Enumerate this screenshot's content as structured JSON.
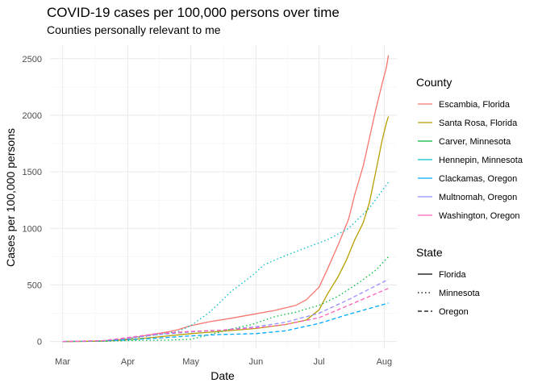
{
  "chart_data": {
    "type": "line",
    "title": "COVID-19 cases per 100,000 persons over time",
    "subtitle": "Counties personally relevant to me",
    "xlabel": "Date",
    "ylabel": "Cases per 100,000 persons",
    "xlim": [
      "2020-02-24",
      "2020-08-07"
    ],
    "ylim": [
      -60,
      2620
    ],
    "x_ticks": [
      {
        "date": "2020-03-01",
        "label": "Mar"
      },
      {
        "date": "2020-04-01",
        "label": "Apr"
      },
      {
        "date": "2020-05-01",
        "label": "May"
      },
      {
        "date": "2020-06-01",
        "label": "Jun"
      },
      {
        "date": "2020-07-01",
        "label": "Jul"
      },
      {
        "date": "2020-08-01",
        "label": "Aug"
      }
    ],
    "y_ticks": [
      0,
      500,
      1000,
      1500,
      2000,
      2500
    ],
    "grid": true,
    "legend_position": "right",
    "legend_color_title": "County",
    "legend_linetype_title": "State",
    "states": [
      {
        "name": "Florida",
        "dash": "solid"
      },
      {
        "name": "Minnesota",
        "dash": "dotted"
      },
      {
        "name": "Oregon",
        "dash": "dashed"
      }
    ],
    "series": [
      {
        "name": "Escambia, Florida",
        "state": "Florida",
        "color": "#F8766D",
        "points": [
          [
            "2020-03-01",
            0
          ],
          [
            "2020-03-15",
            2
          ],
          [
            "2020-03-25",
            10
          ],
          [
            "2020-04-01",
            25
          ],
          [
            "2020-04-10",
            55
          ],
          [
            "2020-04-20",
            85
          ],
          [
            "2020-04-25",
            105
          ],
          [
            "2020-05-01",
            140
          ],
          [
            "2020-05-10",
            175
          ],
          [
            "2020-05-20",
            205
          ],
          [
            "2020-06-01",
            245
          ],
          [
            "2020-06-10",
            275
          ],
          [
            "2020-06-20",
            320
          ],
          [
            "2020-06-25",
            370
          ],
          [
            "2020-07-01",
            480
          ],
          [
            "2020-07-05",
            640
          ],
          [
            "2020-07-10",
            850
          ],
          [
            "2020-07-15",
            1080
          ],
          [
            "2020-07-18",
            1300
          ],
          [
            "2020-07-22",
            1550
          ],
          [
            "2020-07-25",
            1800
          ],
          [
            "2020-07-28",
            2050
          ],
          [
            "2020-07-31",
            2280
          ],
          [
            "2020-08-02",
            2420
          ],
          [
            "2020-08-03",
            2530
          ]
        ]
      },
      {
        "name": "Santa Rosa, Florida",
        "state": "Florida",
        "color": "#B79F00",
        "points": [
          [
            "2020-03-01",
            0
          ],
          [
            "2020-03-20",
            3
          ],
          [
            "2020-04-01",
            15
          ],
          [
            "2020-04-15",
            40
          ],
          [
            "2020-05-01",
            70
          ],
          [
            "2020-05-15",
            90
          ],
          [
            "2020-06-01",
            115
          ],
          [
            "2020-06-15",
            150
          ],
          [
            "2020-06-25",
            190
          ],
          [
            "2020-07-01",
            280
          ],
          [
            "2020-07-05",
            420
          ],
          [
            "2020-07-10",
            570
          ],
          [
            "2020-07-14",
            720
          ],
          [
            "2020-07-18",
            900
          ],
          [
            "2020-07-22",
            1050
          ],
          [
            "2020-07-25",
            1230
          ],
          [
            "2020-07-28",
            1500
          ],
          [
            "2020-07-31",
            1780
          ],
          [
            "2020-08-02",
            1930
          ],
          [
            "2020-08-03",
            1990
          ]
        ]
      },
      {
        "name": "Carver, Minnesota",
        "state": "Minnesota",
        "color": "#00BA38",
        "points": [
          [
            "2020-03-01",
            0
          ],
          [
            "2020-03-20",
            2
          ],
          [
            "2020-04-01",
            8
          ],
          [
            "2020-04-20",
            12
          ],
          [
            "2020-05-01",
            20
          ],
          [
            "2020-05-10",
            60
          ],
          [
            "2020-05-20",
            110
          ],
          [
            "2020-05-30",
            150
          ],
          [
            "2020-06-10",
            220
          ],
          [
            "2020-06-20",
            260
          ],
          [
            "2020-07-01",
            320
          ],
          [
            "2020-07-10",
            400
          ],
          [
            "2020-07-20",
            520
          ],
          [
            "2020-07-28",
            630
          ],
          [
            "2020-08-03",
            750
          ]
        ]
      },
      {
        "name": "Hennepin, Minnesota",
        "state": "Minnesota",
        "color": "#00BFC4",
        "points": [
          [
            "2020-03-01",
            0
          ],
          [
            "2020-03-20",
            5
          ],
          [
            "2020-04-01",
            25
          ],
          [
            "2020-04-15",
            60
          ],
          [
            "2020-04-25",
            90
          ],
          [
            "2020-05-01",
            140
          ],
          [
            "2020-05-10",
            260
          ],
          [
            "2020-05-20",
            440
          ],
          [
            "2020-05-30",
            580
          ],
          [
            "2020-06-05",
            680
          ],
          [
            "2020-06-15",
            760
          ],
          [
            "2020-06-25",
            830
          ],
          [
            "2020-07-05",
            900
          ],
          [
            "2020-07-15",
            1000
          ],
          [
            "2020-07-25",
            1180
          ],
          [
            "2020-08-03",
            1410
          ]
        ]
      },
      {
        "name": "Clackamas, Oregon",
        "state": "Oregon",
        "color": "#00A9FF",
        "points": [
          [
            "2020-03-01",
            0
          ],
          [
            "2020-03-20",
            5
          ],
          [
            "2020-04-01",
            15
          ],
          [
            "2020-04-15",
            30
          ],
          [
            "2020-05-01",
            50
          ],
          [
            "2020-05-15",
            62
          ],
          [
            "2020-06-01",
            70
          ],
          [
            "2020-06-15",
            95
          ],
          [
            "2020-07-01",
            160
          ],
          [
            "2020-07-15",
            240
          ],
          [
            "2020-08-03",
            340
          ]
        ]
      },
      {
        "name": "Multnomah, Oregon",
        "state": "Oregon",
        "color": "#9590FF",
        "points": [
          [
            "2020-03-01",
            0
          ],
          [
            "2020-03-20",
            6
          ],
          [
            "2020-04-01",
            30
          ],
          [
            "2020-04-15",
            60
          ],
          [
            "2020-05-01",
            85
          ],
          [
            "2020-05-15",
            100
          ],
          [
            "2020-06-01",
            130
          ],
          [
            "2020-06-15",
            170
          ],
          [
            "2020-07-01",
            250
          ],
          [
            "2020-07-15",
            370
          ],
          [
            "2020-08-03",
            550
          ]
        ]
      },
      {
        "name": "Washington, Oregon",
        "state": "Oregon",
        "color": "#FF62BC",
        "points": [
          [
            "2020-03-01",
            0
          ],
          [
            "2020-03-20",
            8
          ],
          [
            "2020-04-01",
            35
          ],
          [
            "2020-04-15",
            70
          ],
          [
            "2020-05-01",
            90
          ],
          [
            "2020-05-15",
            100
          ],
          [
            "2020-06-01",
            120
          ],
          [
            "2020-06-15",
            150
          ],
          [
            "2020-07-01",
            210
          ],
          [
            "2020-07-15",
            320
          ],
          [
            "2020-08-03",
            470
          ]
        ]
      }
    ]
  }
}
